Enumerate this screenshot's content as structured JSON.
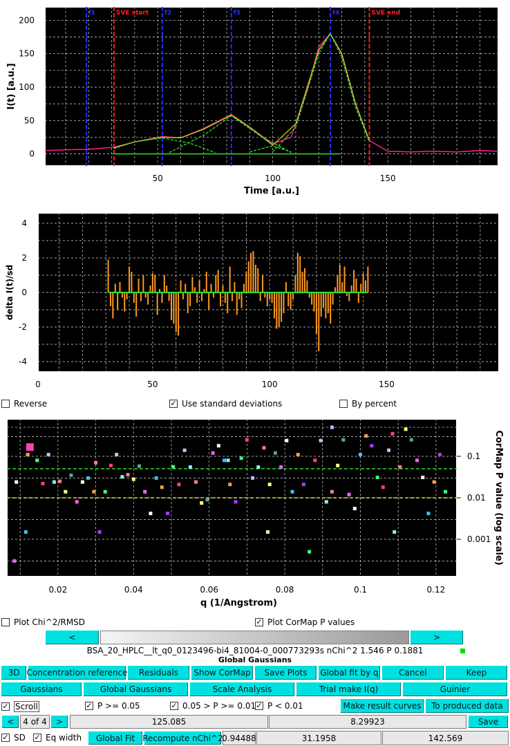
{
  "colors": {
    "accent": "#00e0e0",
    "plot_bg": "#000000",
    "fit": "#ff2090",
    "gauss": "#20dd20",
    "frame_mark": "#2a2aff",
    "sve_mark": "#ff2020",
    "resid": "#ff9a20",
    "green_indicator": "#00e000"
  },
  "plot1": {
    "ylabel": "I(t) [a.u.]",
    "xlabel": "Time [a.u.]",
    "xticks": [
      "50",
      "100",
      "150"
    ],
    "yticks": [
      "0",
      "50",
      "100",
      "150",
      "200"
    ],
    "markers": {
      "f1": "f1",
      "sve_start": "SVE start",
      "f2": "f2",
      "f3": "f3",
      "f4": "f4",
      "sve_end": "SVE end"
    }
  },
  "chart_data": [
    {
      "type": "line",
      "title": "",
      "xlabel": "Time [a.u.]",
      "ylabel": "I(t) [a.u.]",
      "xlim": [
        1,
        198
      ],
      "ylim": [
        -18,
        220
      ],
      "grid": true,
      "vertical_markers": [
        {
          "label": "f1",
          "x": 19,
          "color": "#2a2aff"
        },
        {
          "label": "SVE start",
          "x": 31,
          "color": "#ff2020"
        },
        {
          "label": "f2",
          "x": 52,
          "color": "#2a2aff"
        },
        {
          "label": "f3",
          "x": 82,
          "color": "#2a2aff"
        },
        {
          "label": "f4",
          "x": 125,
          "color": "#2a2aff"
        },
        {
          "label": "SVE end",
          "x": 142,
          "color": "#ff2020"
        }
      ],
      "series": [
        {
          "type": "line",
          "x": [
            1,
            10,
            20,
            31,
            40,
            52,
            60,
            70,
            82,
            90,
            100,
            108,
            115,
            120,
            125,
            130,
            136,
            142,
            150,
            160,
            170,
            180,
            190,
            198
          ],
          "values": [
            5,
            6,
            7,
            10,
            18,
            26,
            24,
            38,
            59,
            40,
            15,
            25,
            95,
            160,
            180,
            150,
            75,
            20,
            4,
            3,
            4,
            3,
            5,
            4
          ]
        },
        {
          "type": "line",
          "x": [
            31,
            40,
            52,
            60,
            70,
            82,
            90,
            100,
            110,
            120,
            125,
            130,
            136,
            142
          ],
          "values": [
            9,
            18,
            25,
            24,
            37,
            58,
            40,
            13,
            45,
            155,
            180,
            150,
            75,
            20
          ]
        },
        {
          "type": "line",
          "x": [
            31,
            40,
            52,
            64,
            75
          ],
          "values": [
            8,
            18,
            24,
            16,
            2
          ]
        },
        {
          "type": "line",
          "x": [
            55,
            70,
            82,
            95,
            108
          ],
          "values": [
            2,
            28,
            57,
            26,
            2
          ]
        },
        {
          "type": "line",
          "x": [
            90,
            100,
            108
          ],
          "values": [
            3,
            12,
            3
          ]
        },
        {
          "type": "line",
          "x": [
            100,
            110,
            120,
            125,
            130,
            136,
            142
          ],
          "values": [
            3,
            40,
            150,
            180,
            145,
            70,
            18
          ]
        }
      ]
    },
    {
      "type": "bar",
      "title": "",
      "xlabel": "",
      "ylabel": "delta I(t)/sd",
      "xlim": [
        1,
        198
      ],
      "ylim": [
        -4.6,
        4.6
      ],
      "grid": true,
      "x": [
        31,
        32,
        33,
        34,
        35,
        36,
        37,
        38,
        39,
        40,
        41,
        42,
        43,
        44,
        45,
        46,
        47,
        48,
        49,
        50,
        51,
        52,
        53,
        54,
        55,
        56,
        57,
        58,
        59,
        60,
        61,
        62,
        63,
        64,
        65,
        66,
        67,
        68,
        69,
        70,
        71,
        72,
        73,
        74,
        75,
        76,
        77,
        78,
        79,
        80,
        81,
        82,
        83,
        84,
        85,
        86,
        87,
        88,
        89,
        90,
        91,
        92,
        93,
        94,
        95,
        96,
        97,
        98,
        99,
        100,
        101,
        102,
        103,
        104,
        105,
        106,
        107,
        108,
        109,
        110,
        111,
        112,
        113,
        114,
        115,
        116,
        117,
        118,
        119,
        120,
        121,
        122,
        123,
        124,
        125,
        126,
        127,
        128,
        129,
        130,
        131,
        132,
        133,
        134,
        135,
        136,
        137,
        138,
        139,
        140,
        141,
        142
      ],
      "values": [
        1.9,
        -0.8,
        -1.5,
        0.5,
        -1.0,
        0.6,
        -0.3,
        -1.1,
        -0.4,
        1.5,
        1.2,
        -0.6,
        -1.4,
        0.8,
        -0.5,
        1.0,
        -0.3,
        -0.7,
        0.4,
        1.1,
        1.0,
        -1.3,
        0.2,
        -0.6,
        1.0,
        0.4,
        -0.5,
        -1.6,
        -1.8,
        -2.3,
        -2.5,
        0.7,
        -0.4,
        0.5,
        -1.2,
        -0.8,
        0.9,
        0.3,
        -0.6,
        0.7,
        -0.5,
        0.2,
        1.2,
        -1.0,
        0.5,
        -0.3,
        1.0,
        1.3,
        -0.8,
        0.4,
        -0.6,
        -1.2,
        1.5,
        -0.5,
        0.6,
        -1.3,
        -0.4,
        -0.9,
        0.5,
        1.2,
        1.8,
        2.3,
        2.4,
        1.6,
        1.4,
        -0.5,
        1.0,
        -0.3,
        -0.8,
        -0.4,
        -0.6,
        -1.5,
        -2.1,
        -2.0,
        -1.7,
        -1.2,
        0.6,
        -0.8,
        -1.0,
        -0.4,
        1.0,
        2.3,
        2.1,
        1.2,
        1.4,
        0.7,
        -0.3,
        -0.7,
        -1.1,
        -2.4,
        -3.4,
        -1.4,
        -0.9,
        -1.5,
        -1.2,
        -1.8,
        -0.7,
        0.3,
        1.0,
        1.6,
        0.6,
        1.5,
        -0.2,
        -0.5,
        0.4,
        1.3,
        0.8,
        -0.6,
        0.5,
        1.1,
        0.7,
        1.5
      ]
    },
    {
      "type": "scatter",
      "title": "",
      "xlabel": "q (1/Angstrom)",
      "ylabel": "CorMap P value (log scale)",
      "xlim": [
        0.0065,
        0.1255
      ],
      "ylim_log10": [
        -3.9,
        -0.1
      ],
      "grid": true,
      "threshold_lines": [
        {
          "value": 0.05,
          "color": "#22dd22"
        },
        {
          "value": 0.01,
          "color": "#dddd22"
        }
      ],
      "x": [
        0.0085,
        0.009,
        0.0115,
        0.012,
        0.013,
        0.0145,
        0.016,
        0.0175,
        0.019,
        0.0205,
        0.022,
        0.0235,
        0.025,
        0.0265,
        0.028,
        0.0295,
        0.031,
        0.0325,
        0.034,
        0.0355,
        0.037,
        0.0385,
        0.04,
        0.0415,
        0.043,
        0.0445,
        0.046,
        0.0475,
        0.049,
        0.0505,
        0.052,
        0.0535,
        0.055,
        0.0565,
        0.058,
        0.0595,
        0.061,
        0.0625,
        0.064,
        0.0655,
        0.067,
        0.0685,
        0.07,
        0.0715,
        0.073,
        0.0745,
        0.076,
        0.0775,
        0.079,
        0.0805,
        0.082,
        0.0835,
        0.085,
        0.0865,
        0.088,
        0.0895,
        0.091,
        0.0925,
        0.094,
        0.0955,
        0.097,
        0.0985,
        0.1,
        0.1015,
        0.103,
        0.1045,
        0.106,
        0.1075,
        0.109,
        0.1105,
        0.112,
        0.1135,
        0.115,
        0.1165,
        0.118,
        0.1195,
        0.121,
        0.1225,
        0.1085,
        0.0925,
        0.065,
        0.03,
        0.0755
      ],
      "values": [
        0.0003,
        0.024,
        0.0015,
        0.11,
        0.17,
        0.08,
        0.022,
        0.11,
        0.024,
        0.025,
        0.014,
        0.035,
        0.008,
        0.024,
        0.03,
        0.014,
        0.0015,
        0.014,
        0.06,
        0.11,
        0.032,
        0.036,
        0.028,
        0.058,
        0.014,
        0.0042,
        0.03,
        0.018,
        0.0042,
        0.056,
        0.021,
        0.14,
        0.055,
        0.024,
        0.0075,
        0.009,
        0.12,
        0.18,
        0.08,
        0.021,
        0.008,
        0.09,
        0.25,
        0.03,
        0.055,
        0.16,
        0.021,
        0.12,
        0.055,
        0.24,
        0.014,
        0.11,
        0.021,
        0.0005,
        0.08,
        0.24,
        0.008,
        0.014,
        0.06,
        0.25,
        0.012,
        0.0055,
        0.11,
        0.31,
        0.18,
        0.031,
        0.018,
        0.14,
        0.0015,
        0.055,
        0.45,
        0.25,
        0.08,
        0.031,
        0.0042,
        0.024,
        0.11,
        0.014,
        0.35,
        0.5,
        0.08,
        0.07,
        0.0015
      ],
      "xticks": [
        "0.02",
        "0.04",
        "0.06",
        "0.08",
        "0.1",
        "0.12"
      ],
      "yticks": [
        "0.1",
        "0.01",
        "0.001"
      ]
    }
  ],
  "plot2": {
    "ylabel": "delta I(t)/sd",
    "xticks": [
      "0",
      "50",
      "100",
      "150"
    ],
    "yticks": [
      "4",
      "2",
      "0",
      "-2",
      "-4"
    ]
  },
  "plot3": {
    "xlabel": "q (1/Angstrom)",
    "ylabel": "CorMap P value (log scale)",
    "xticks": [
      "0.02",
      "0.04",
      "0.06",
      "0.08",
      "0.1",
      "0.12"
    ],
    "yticks": [
      "0.1",
      "0.01",
      "0.001"
    ]
  },
  "options_row": {
    "reverse": "Reverse",
    "use_sd": "Use standard deviations",
    "by_percent": "By percent",
    "reverse_checked": false,
    "use_sd_checked": true,
    "by_percent_checked": false
  },
  "options_row2": {
    "plot_chi": "Plot Chi^2/RMSD",
    "plot_cormap": "Plot CorMap P values",
    "plot_chi_checked": false,
    "plot_cormap_checked": true
  },
  "nav": {
    "prev": "<",
    "next": ">"
  },
  "status_line": "BSA_20_HPLC__lt_q0_0123496-bi4_81004-0_000773293s nChi^2 1.546 P 0.1881",
  "section_title": "Global Gaussians",
  "buttons_row1": [
    "3D",
    "Concentration reference",
    "Residuals",
    "Show CorMap",
    "Save Plots",
    "Global fit by q",
    "Cancel",
    "Keep"
  ],
  "buttons_row2": [
    "Gaussians",
    "Global Gaussians",
    "Scale Analysis",
    "Trial make I(q)",
    "Guinier"
  ],
  "filters": {
    "scroll": "Scroll",
    "p1": "P >= 0.05",
    "p2": "0.05 > P >= 0.01",
    "p3": "P < 0.01",
    "make_result": "Make result curves",
    "to_produced": "To produced data"
  },
  "pager": {
    "prev": "<",
    "count": "4 of 4",
    "next": ">",
    "value1": "125.085",
    "value2": "8.29923",
    "save": "Save"
  },
  "bottom": {
    "sd": "SD",
    "eq_width": "Eq width",
    "global_fit": "Global Fit",
    "recompute": "Recompute nChi^2",
    "v1": "0.94488",
    "v2": "31.1958",
    "v3": "142.569"
  }
}
